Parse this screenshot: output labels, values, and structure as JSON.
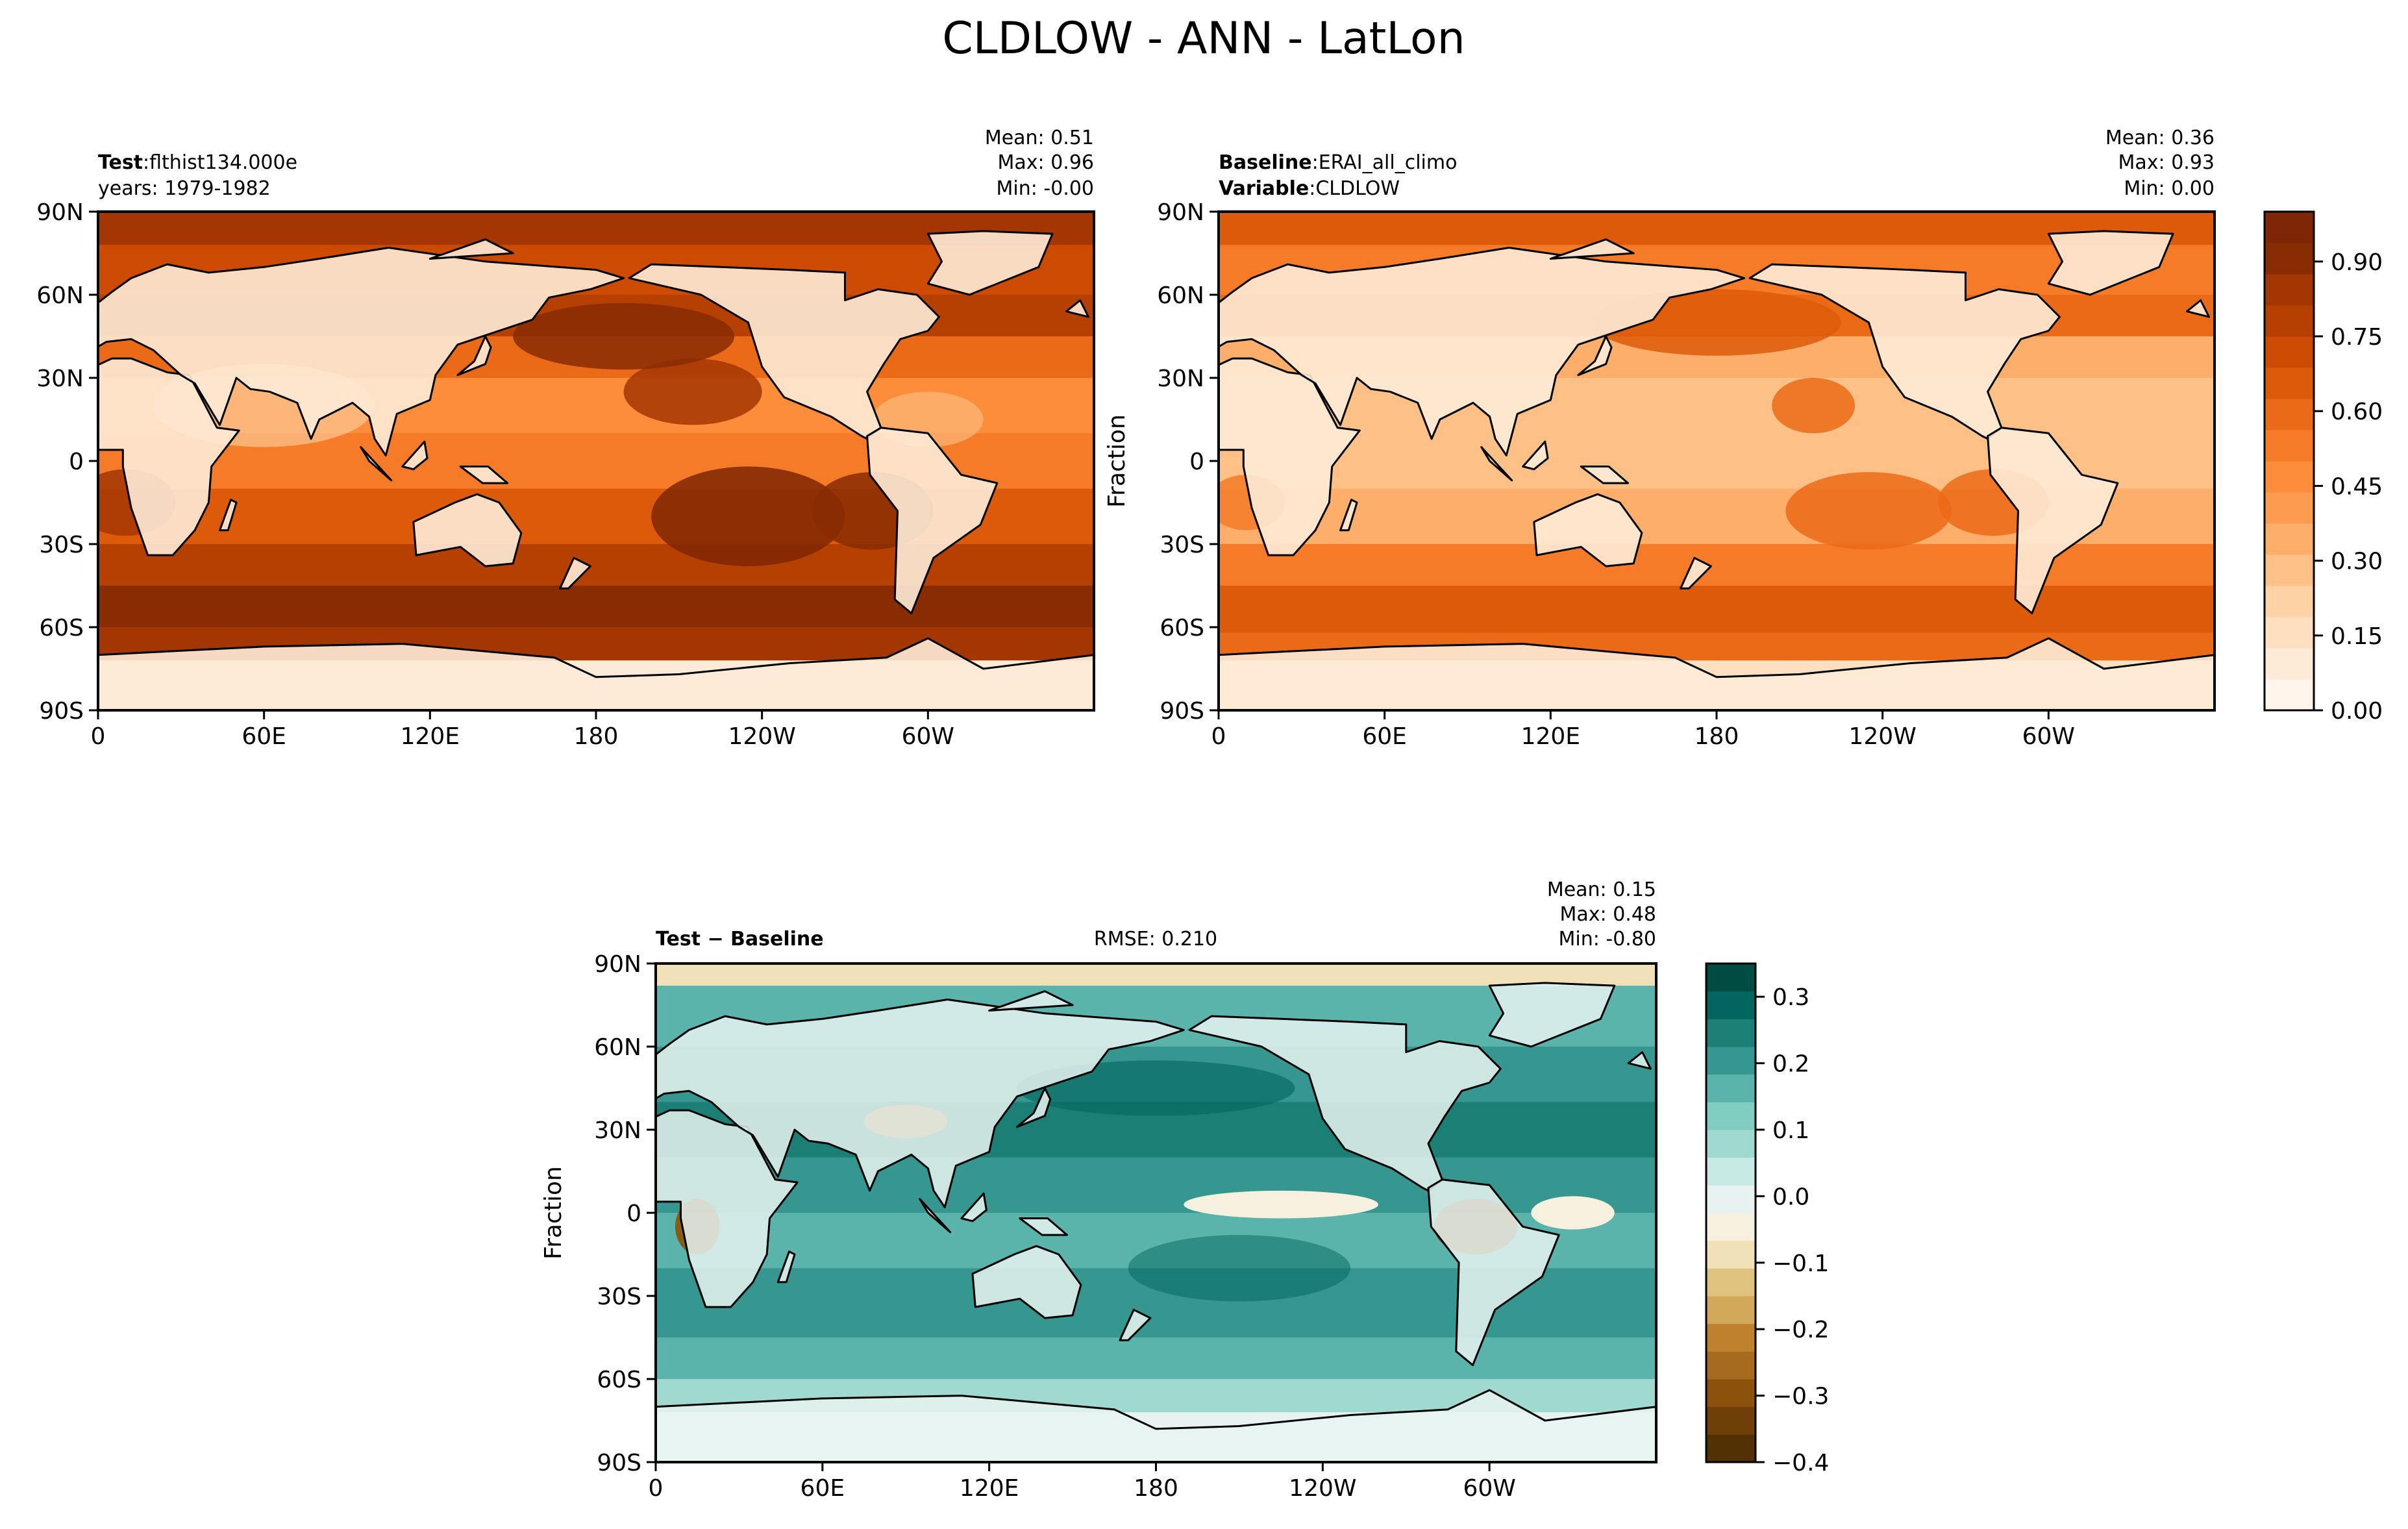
{
  "figure": {
    "title": "CLDLOW - ANN - LatLon"
  },
  "colors": {
    "orange_scale": [
      "#fff5eb",
      "#feebd7",
      "#fee0c1",
      "#fdd2a5",
      "#fdc187",
      "#fdae6b",
      "#fd9b50",
      "#fd8c3b",
      "#f57b28",
      "#eb6a17",
      "#de5a0b",
      "#cd4a03",
      "#b54002",
      "#a33603",
      "#882c03",
      "#7f2704"
    ],
    "diff_scale": [
      "#543005",
      "#6f3f08",
      "#8c510a",
      "#a66b1e",
      "#bf812d",
      "#d2a85a",
      "#dfc27d",
      "#f0e1b8",
      "#f6f0df",
      "#e8f3f1",
      "#c7eae5",
      "#a0d9cf",
      "#80cdc1",
      "#5ab4ac",
      "#35978f",
      "#1c7f76",
      "#01665e",
      "#004c42"
    ],
    "map_border": "#000000"
  },
  "panels": {
    "test": {
      "label_bold": "Test",
      "label_value": "flthist134.000e",
      "subline": "years: 1979-1982",
      "stats": {
        "mean": "Mean:  0.51",
        "max": "Max:  0.96",
        "min": "Min: -0.00"
      }
    },
    "baseline": {
      "label_bold": "Baseline",
      "label_value": "ERAI_all_climo",
      "label2_bold": "Variable",
      "label2_value": "CLDLOW",
      "ylabel": "Fraction",
      "stats": {
        "mean": "Mean:  0.36",
        "max": "Max:  0.93",
        "min": "Min:  0.00"
      }
    },
    "diff": {
      "label": "Test − Baseline",
      "rmse": "RMSE: 0.210",
      "ylabel": "Fraction",
      "stats": {
        "mean": "Mean:  0.15",
        "max": "Max:  0.48",
        "min": "Min: -0.80"
      }
    }
  },
  "axes": {
    "lon_ticks": [
      "0",
      "60E",
      "120E",
      "180",
      "120W",
      "60W"
    ],
    "lat_ticks": [
      "90N",
      "60N",
      "30N",
      "0",
      "30S",
      "60S",
      "90S"
    ]
  },
  "colorbars": {
    "cloud_fraction": {
      "ticks": [
        "0.00",
        "0.15",
        "0.30",
        "0.45",
        "0.60",
        "0.75",
        "0.90"
      ],
      "range": [
        0,
        1
      ]
    },
    "difference": {
      "ticks": [
        "0.3",
        "0.2",
        "0.1",
        "0.0",
        "−0.1",
        "−0.2",
        "−0.3",
        "−0.4"
      ],
      "range": [
        -0.4,
        0.35
      ]
    }
  },
  "chart_data": [
    {
      "type": "heatmap",
      "title": "flthist134.000e",
      "variable": "CLDLOW",
      "x_ticks": [
        "0",
        "60E",
        "120E",
        "180",
        "120W",
        "60W"
      ],
      "y_ticks": [
        "90N",
        "60N",
        "30N",
        "0",
        "30S",
        "60S",
        "90S"
      ],
      "zlim": [
        0,
        1
      ],
      "mean": 0.51,
      "max": 0.96,
      "min": -0.0
    },
    {
      "type": "heatmap",
      "title": "ERAI_all_climo",
      "variable": "CLDLOW",
      "ylabel": "Fraction",
      "x_ticks": [
        "0",
        "60E",
        "120E",
        "180",
        "120W",
        "60W"
      ],
      "y_ticks": [
        "90N",
        "60N",
        "30N",
        "0",
        "30S",
        "60S",
        "90S"
      ],
      "zlim": [
        0,
        1
      ],
      "mean": 0.36,
      "max": 0.93,
      "min": 0.0
    },
    {
      "type": "heatmap",
      "title": "Test − Baseline",
      "ylabel": "Fraction",
      "x_ticks": [
        "0",
        "60E",
        "120E",
        "180",
        "120W",
        "60W"
      ],
      "y_ticks": [
        "90N",
        "60N",
        "30N",
        "0",
        "30S",
        "60S",
        "90S"
      ],
      "zlim": [
        -0.4,
        0.35
      ],
      "mean": 0.15,
      "max": 0.48,
      "min": -0.8,
      "rmse": 0.21
    }
  ]
}
